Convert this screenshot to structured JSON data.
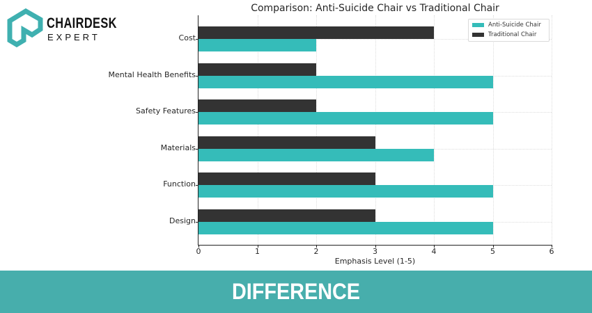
{
  "brand": {
    "name_line1": "CHAIRDESK",
    "name_line2": "EXPERT",
    "logo_color": "#3fb0b0"
  },
  "banner": {
    "text": "DIFFERENCE",
    "background": "#47aeac"
  },
  "chart_data": {
    "type": "bar",
    "orientation": "horizontal",
    "title": "Comparison: Anti-Suicide Chair vs Traditional Chair",
    "xlabel": "Emphasis Level (1-5)",
    "ylabel": "",
    "categories": [
      "Cost",
      "Mental Health Benefits",
      "Safety Features",
      "Materials",
      "Function",
      "Design"
    ],
    "series": [
      {
        "name": "Anti-Suicide Chair",
        "color": "#35bcb9",
        "values": [
          2,
          5,
          5,
          4,
          5,
          5
        ]
      },
      {
        "name": "Traditional Chair",
        "color": "#333333",
        "values": [
          4,
          2,
          2,
          3,
          3,
          3
        ]
      }
    ],
    "xlim": [
      0,
      6
    ],
    "xticks": [
      "0",
      "1",
      "2",
      "3",
      "4",
      "5",
      "6"
    ],
    "grid": true,
    "legend_position": "upper right"
  }
}
